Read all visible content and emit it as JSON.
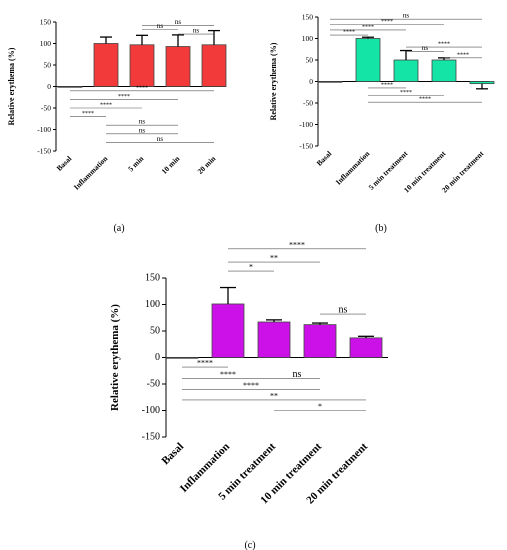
{
  "figure": {
    "panel_labels": [
      "(a)",
      "(b)",
      "(c)"
    ]
  },
  "chart_data": [
    {
      "type": "bar",
      "panel": "(a)",
      "ylabel": "Relative erythema (%)",
      "ylim": [
        -150,
        150
      ],
      "yticks": [
        150,
        100,
        50,
        0,
        -50,
        -100,
        -150
      ],
      "categories": [
        "Basal",
        "Inflammation",
        "5 min",
        "10 min",
        "20 min"
      ],
      "values": [
        0,
        100,
        97,
        93,
        97
      ],
      "errors": [
        0,
        15,
        22,
        27,
        33
      ],
      "bar_color": "#f23a3a",
      "comparisons": [
        {
          "from": 2,
          "to": 4,
          "label": "ns",
          "y": 142
        },
        {
          "from": 2,
          "to": 3,
          "label": "ns",
          "y": 132
        },
        {
          "from": 3,
          "to": 4,
          "label": "ns",
          "y": 122
        },
        {
          "from": 0,
          "to": 4,
          "label": "****",
          "y": -10
        },
        {
          "from": 0,
          "to": 3,
          "label": "****",
          "y": -30
        },
        {
          "from": 0,
          "to": 2,
          "label": "****",
          "y": -50
        },
        {
          "from": 0,
          "to": 1,
          "label": "****",
          "y": -70
        },
        {
          "from": 1,
          "to": 3,
          "label": "ns",
          "y": -90
        },
        {
          "from": 1,
          "to": 3,
          "label": "ns",
          "y": -110
        },
        {
          "from": 1,
          "to": 4,
          "label": "ns",
          "y": -130
        }
      ]
    },
    {
      "type": "bar",
      "panel": "(b)",
      "ylabel": "Relative erythema (%)",
      "ylim": [
        -150,
        150
      ],
      "yticks": [
        150,
        100,
        50,
        0,
        -50,
        -100,
        -150
      ],
      "categories": [
        "Basal",
        "Inflammation",
        "5 min treatment",
        "10 min treatment",
        "20 min treatment"
      ],
      "values": [
        0,
        100,
        50,
        50,
        -5
      ],
      "errors": [
        0,
        3,
        22,
        5,
        12
      ],
      "bar_color": "#14e5a6",
      "comparisons": [
        {
          "from": 0,
          "to": 4,
          "label": "ns",
          "y": 145
        },
        {
          "from": 0,
          "to": 3,
          "label": "****",
          "y": 132
        },
        {
          "from": 0,
          "to": 2,
          "label": "****",
          "y": 120
        },
        {
          "from": 0,
          "to": 1,
          "label": "****",
          "y": 108
        },
        {
          "from": 2,
          "to": 4,
          "label": "****",
          "y": 80
        },
        {
          "from": 2,
          "to": 3,
          "label": "ns",
          "y": 70
        },
        {
          "from": 3,
          "to": 4,
          "label": "****",
          "y": 55
        },
        {
          "from": 1,
          "to": 2,
          "label": "****",
          "y": -15
        },
        {
          "from": 1,
          "to": 3,
          "label": "****",
          "y": -32
        },
        {
          "from": 1,
          "to": 4,
          "label": "****",
          "y": -48
        }
      ]
    },
    {
      "type": "bar",
      "panel": "(c)",
      "ylabel": "Relative erythema (%)",
      "ylim": [
        -150,
        150
      ],
      "yticks": [
        150,
        100,
        50,
        0,
        -50,
        -100,
        -150
      ],
      "categories": [
        "Basal",
        "Inflammation",
        "5 min treatment",
        "10 min treatment",
        "20 min treatment"
      ],
      "values": [
        0,
        101,
        67,
        62,
        37
      ],
      "errors": [
        0,
        31,
        4,
        3,
        3
      ],
      "bar_color": "#cc10e8",
      "comparisons": [
        {
          "from": 1,
          "to": 4,
          "label": "****",
          "y": 205
        },
        {
          "from": 1,
          "to": 3,
          "label": "**",
          "y": 180
        },
        {
          "from": 1,
          "to": 2,
          "label": "*",
          "y": 163
        },
        {
          "from": 3,
          "to": 4,
          "label": "ns",
          "y": 82
        },
        {
          "from": 0,
          "to": 1,
          "label": "****",
          "y": -18
        },
        {
          "from": 0,
          "to": 2,
          "label": "****",
          "y": -40
        },
        {
          "from": 2,
          "to": 3,
          "label": "ns",
          "y": -40
        },
        {
          "from": 0,
          "to": 3,
          "label": "****",
          "y": -60
        },
        {
          "from": 0,
          "to": 4,
          "label": "**",
          "y": -80
        },
        {
          "from": 2,
          "to": 4,
          "label": "*",
          "y": -100
        }
      ]
    }
  ]
}
